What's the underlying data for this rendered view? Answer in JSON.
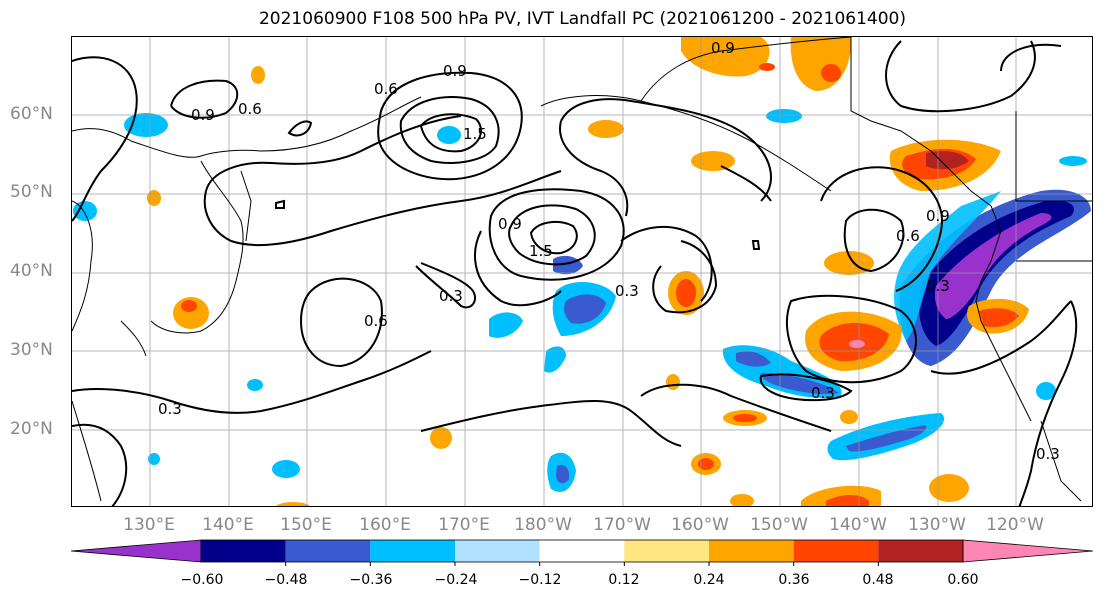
{
  "title": "2021060900 F108 500 hPa PV, IVT Landfall PC (2021061200 - 2021061400)",
  "lat_labels": [
    "60°N",
    "50°N",
    "40°N",
    "30°N",
    "20°N"
  ],
  "lon_labels": [
    "130°E",
    "140°E",
    "150°E",
    "160°E",
    "170°E",
    "180°W",
    "170°W",
    "160°W",
    "150°W",
    "140°W",
    "130°W",
    "120°W"
  ],
  "contour_labels": [
    "0.9",
    "0.6",
    "0.9",
    "0.6",
    "1.5",
    "0.9",
    "1.5",
    "0.3",
    "0.3",
    "0.6",
    "0.3",
    "0.9",
    "0.6",
    "0.3",
    "0.3",
    "0.3",
    "0.9"
  ],
  "colorbar": {
    "labels": [
      "−0.60",
      "−0.48",
      "−0.36",
      "−0.24",
      "−0.12",
      "0.12",
      "0.24",
      "0.36",
      "0.48",
      "0.60"
    ],
    "colors": [
      "#9932cc",
      "#00008b",
      "#3a5bcf",
      "#00bfff",
      "#b0e2ff",
      "#ffffff",
      "#ffe680",
      "#ffa500",
      "#ff4500",
      "#b22222",
      "#ff85b4"
    ]
  }
}
